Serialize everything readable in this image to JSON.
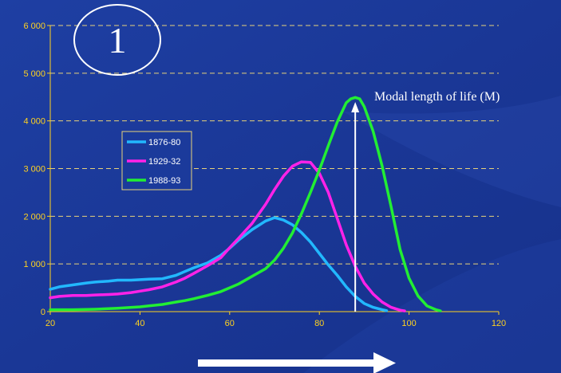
{
  "chart_data": {
    "type": "line",
    "title": "",
    "xlabel": "",
    "ylabel": "",
    "xlim": [
      20,
      120
    ],
    "ylim": [
      0,
      6000
    ],
    "x_ticks": [
      "20",
      "40",
      "60",
      "80",
      "100",
      "120"
    ],
    "y_ticks": [
      "0",
      "1 000",
      "2 000",
      "3 000",
      "4 000",
      "5 000",
      "6 000"
    ],
    "grid": "horizontal dashed",
    "legend_position": "upper-left",
    "panel_label": "1",
    "annotation": "Modal length of life (M)",
    "annotation_x": 88,
    "series": [
      {
        "name": "1876-80",
        "color": "#22b8ff",
        "points": [
          [
            20,
            470
          ],
          [
            22,
            520
          ],
          [
            25,
            560
          ],
          [
            28,
            600
          ],
          [
            30,
            620
          ],
          [
            33,
            640
          ],
          [
            35,
            660
          ],
          [
            38,
            660
          ],
          [
            40,
            670
          ],
          [
            42,
            680
          ],
          [
            45,
            690
          ],
          [
            48,
            760
          ],
          [
            50,
            840
          ],
          [
            52,
            920
          ],
          [
            55,
            1020
          ],
          [
            58,
            1180
          ],
          [
            60,
            1330
          ],
          [
            62,
            1500
          ],
          [
            65,
            1720
          ],
          [
            68,
            1900
          ],
          [
            70,
            1970
          ],
          [
            72,
            1920
          ],
          [
            74,
            1820
          ],
          [
            76,
            1660
          ],
          [
            78,
            1460
          ],
          [
            80,
            1220
          ],
          [
            82,
            980
          ],
          [
            84,
            760
          ],
          [
            86,
            520
          ],
          [
            88,
            320
          ],
          [
            90,
            170
          ],
          [
            92,
            90
          ],
          [
            94,
            40
          ],
          [
            95,
            20
          ]
        ]
      },
      {
        "name": "1929-32",
        "color": "#ff22e8",
        "points": [
          [
            20,
            290
          ],
          [
            22,
            320
          ],
          [
            25,
            340
          ],
          [
            28,
            340
          ],
          [
            30,
            350
          ],
          [
            33,
            360
          ],
          [
            35,
            370
          ],
          [
            38,
            400
          ],
          [
            40,
            430
          ],
          [
            42,
            460
          ],
          [
            45,
            520
          ],
          [
            48,
            620
          ],
          [
            50,
            700
          ],
          [
            52,
            800
          ],
          [
            55,
            960
          ],
          [
            58,
            1130
          ],
          [
            60,
            1340
          ],
          [
            62,
            1540
          ],
          [
            65,
            1850
          ],
          [
            68,
            2250
          ],
          [
            70,
            2560
          ],
          [
            72,
            2840
          ],
          [
            74,
            3050
          ],
          [
            76,
            3140
          ],
          [
            78,
            3130
          ],
          [
            80,
            2900
          ],
          [
            82,
            2500
          ],
          [
            84,
            1950
          ],
          [
            86,
            1400
          ],
          [
            88,
            950
          ],
          [
            90,
            600
          ],
          [
            92,
            370
          ],
          [
            94,
            200
          ],
          [
            96,
            90
          ],
          [
            98,
            30
          ],
          [
            99,
            15
          ]
        ]
      },
      {
        "name": "1988-93",
        "color": "#22ee33",
        "points": [
          [
            20,
            40
          ],
          [
            25,
            40
          ],
          [
            30,
            50
          ],
          [
            35,
            70
          ],
          [
            40,
            100
          ],
          [
            42,
            120
          ],
          [
            45,
            150
          ],
          [
            48,
            200
          ],
          [
            50,
            230
          ],
          [
            52,
            270
          ],
          [
            55,
            340
          ],
          [
            58,
            420
          ],
          [
            60,
            500
          ],
          [
            62,
            580
          ],
          [
            65,
            740
          ],
          [
            68,
            900
          ],
          [
            70,
            1080
          ],
          [
            72,
            1330
          ],
          [
            74,
            1650
          ],
          [
            76,
            2050
          ],
          [
            78,
            2500
          ],
          [
            80,
            2970
          ],
          [
            82,
            3480
          ],
          [
            84,
            3980
          ],
          [
            86,
            4380
          ],
          [
            87,
            4460
          ],
          [
            88,
            4490
          ],
          [
            89,
            4460
          ],
          [
            90,
            4300
          ],
          [
            92,
            3780
          ],
          [
            94,
            3050
          ],
          [
            96,
            2200
          ],
          [
            98,
            1300
          ],
          [
            100,
            700
          ],
          [
            102,
            330
          ],
          [
            104,
            120
          ],
          [
            106,
            40
          ],
          [
            107,
            15
          ]
        ]
      }
    ]
  }
}
